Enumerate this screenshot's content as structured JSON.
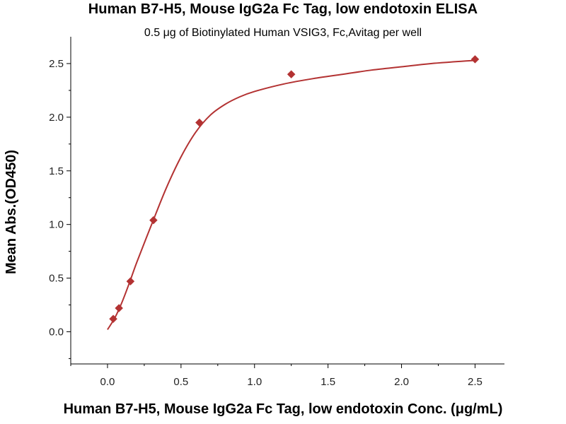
{
  "chart_data": {
    "type": "scatter",
    "title": "Human B7-H5, Mouse IgG2a Fc Tag, low endotoxin ELISA",
    "subtitle": "0.5 μg of Biotinylated Human VSIG3, Fc,Avitag per well",
    "xlabel": "Human B7-H5, Mouse IgG2a Fc Tag, low endotoxin Conc. (μg/mL)",
    "ylabel": "Mean Abs.(OD450)",
    "xlim": [
      -0.25,
      2.7
    ],
    "ylim": [
      -0.3,
      2.75
    ],
    "x_ticks": [
      0.0,
      0.5,
      1.0,
      1.5,
      2.0,
      2.5
    ],
    "x_tick_labels": [
      "0.0",
      "0.5",
      "1.0",
      "1.5",
      "2.0",
      "2.5"
    ],
    "y_ticks": [
      0.0,
      0.5,
      1.0,
      1.5,
      2.0,
      2.5
    ],
    "y_tick_labels": [
      "0.0",
      "0.5",
      "1.0",
      "1.5",
      "2.0",
      "2.5"
    ],
    "grid": false,
    "series": [
      {
        "marker": "diamond",
        "color": "#b33232",
        "x": [
          0.039,
          0.078,
          0.156,
          0.3125,
          0.625,
          1.25,
          2.5
        ],
        "y": [
          0.12,
          0.22,
          0.47,
          1.04,
          1.95,
          2.4,
          2.54
        ]
      }
    ],
    "fit_curve": {
      "color": "#b33232",
      "x": [
        0.0,
        0.05,
        0.1,
        0.15,
        0.2,
        0.3,
        0.4,
        0.5,
        0.6,
        0.7,
        0.8,
        0.9,
        1.0,
        1.2,
        1.4,
        1.6,
        1.8,
        2.0,
        2.2,
        2.5
      ],
      "y": [
        0.02,
        0.13,
        0.28,
        0.46,
        0.65,
        1.0,
        1.34,
        1.63,
        1.86,
        2.02,
        2.12,
        2.19,
        2.24,
        2.31,
        2.36,
        2.4,
        2.44,
        2.47,
        2.5,
        2.53
      ]
    }
  }
}
